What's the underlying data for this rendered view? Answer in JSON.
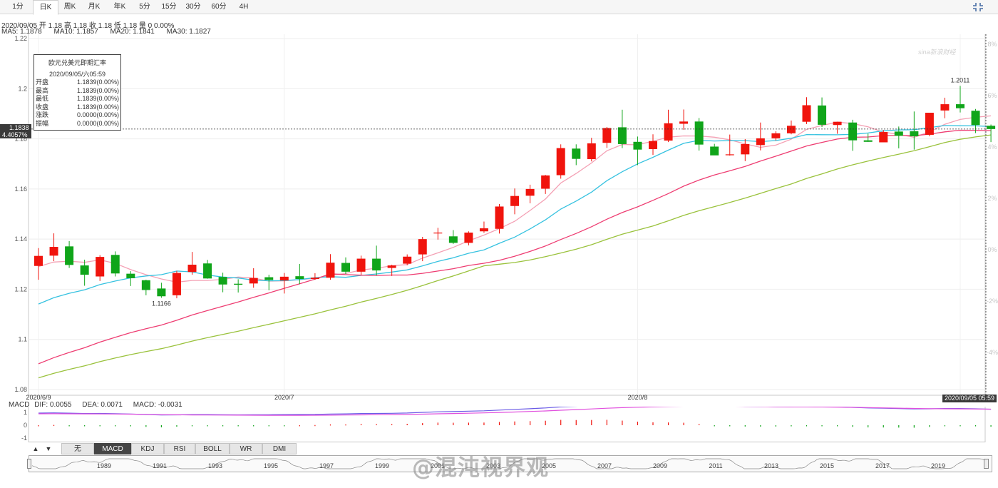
{
  "periods": [
    "1分",
    "日K",
    "周K",
    "月K",
    "年K",
    "5分",
    "15分",
    "30分",
    "60分",
    "4H"
  ],
  "active_period": "日K",
  "info_line": "2020/09/05 开 1.18 高 1.18 收 1.18 低 1.18 量 0 0.00%",
  "ma_labels": {
    "ma5": "MA5: 1.1878",
    "ma10": "MA10: 1.1857",
    "ma20": "MA20: 1.1841",
    "ma30": "MA30: 1.1827"
  },
  "colors": {
    "up": "#f0140d",
    "down": "#10a51a",
    "ma5": "#f4a0b4",
    "ma10": "#36c2e0",
    "ma20": "#ee3d72",
    "ma30": "#9ac23c",
    "dif": "#6a5ae6",
    "dea": "#e150de",
    "macd": "#f0140d"
  },
  "tooltip": {
    "title": "欧元兑美元即期汇率",
    "datetime": "2020/09/05/六05:59",
    "rows": [
      {
        "label": "开盘",
        "value": "1.1839(0.00%)"
      },
      {
        "label": "最高",
        "value": "1.1839(0.00%)"
      },
      {
        "label": "最低",
        "value": "1.1839(0.00%)"
      },
      {
        "label": "收盘",
        "value": "1.1839(0.00%)"
      },
      {
        "label": "涨跌",
        "value": "0.0000(0.00%)"
      },
      {
        "label": "振幅",
        "value": "0.0000(0.00%)"
      }
    ]
  },
  "price_tag": "1.1838",
  "pct_tag": "4.4057%",
  "date_tag": "2020/09/05 05:59",
  "right_axis_ticks": [
    "8%",
    "6%",
    "4%",
    "2%",
    "0%",
    "-2%",
    "-4%",
    "-6%",
    "-8%"
  ],
  "macd_legend": {
    "name": "MACD",
    "dif": "DIF: 0.0055",
    "dea": "DEA: 0.0071",
    "macd": "MACD: -0.0031"
  },
  "macd_ticks": [
    "1",
    "0",
    "-1"
  ],
  "indicator_tabs": [
    "无",
    "MACD",
    "KDJ",
    "RSI",
    "BOLL",
    "WR",
    "DMI"
  ],
  "active_indicator": "MACD",
  "navigator_years": [
    "1989",
    "1991",
    "1993",
    "1995",
    "1997",
    "1999",
    "2001",
    "2003",
    "2005",
    "2007",
    "2009",
    "2011",
    "2013",
    "2015",
    "2017",
    "2019"
  ],
  "watermark": "@混沌视界观",
  "logo_text": "sina新浪财经",
  "chart_data": {
    "type": "candlestick",
    "title": "欧元兑美元即期汇率",
    "ylim": [
      1.08,
      1.22
    ],
    "yticks": [
      1.22,
      1.2,
      1.18,
      1.16,
      1.14,
      1.12,
      1.1,
      1.08
    ],
    "x_labels": [
      {
        "index": 0,
        "label": "2020/6/9"
      },
      {
        "index": 16,
        "label": "2020/7"
      },
      {
        "index": 39,
        "label": "2020/8"
      },
      {
        "index": 60,
        "label": "2020"
      }
    ],
    "annotations": [
      {
        "index": 8,
        "label": "1.1166"
      },
      {
        "index": 60,
        "label": "1.2011"
      }
    ],
    "ohlc": [
      [
        1.1293,
        1.1364,
        1.1238,
        1.1333
      ],
      [
        1.1334,
        1.1423,
        1.1312,
        1.1369
      ],
      [
        1.1371,
        1.1392,
        1.1285,
        1.1297
      ],
      [
        1.1295,
        1.1318,
        1.1214,
        1.1258
      ],
      [
        1.1251,
        1.1336,
        1.1233,
        1.1329
      ],
      [
        1.1337,
        1.1351,
        1.1251,
        1.1263
      ],
      [
        1.1262,
        1.1272,
        1.1213,
        1.1244
      ],
      [
        1.1236,
        1.1238,
        1.1176,
        1.1197
      ],
      [
        1.1203,
        1.1226,
        1.1166,
        1.1172
      ],
      [
        1.1176,
        1.1273,
        1.1164,
        1.1265
      ],
      [
        1.1269,
        1.1349,
        1.1258,
        1.1298
      ],
      [
        1.1303,
        1.1317,
        1.1242,
        1.1243
      ],
      [
        1.1249,
        1.1266,
        1.1188,
        1.1219
      ],
      [
        1.1222,
        1.124,
        1.1187,
        1.1218
      ],
      [
        1.1223,
        1.1284,
        1.1206,
        1.1245
      ],
      [
        1.1248,
        1.1258,
        1.1196,
        1.1237
      ],
      [
        1.1235,
        1.1265,
        1.1183,
        1.125
      ],
      [
        1.1252,
        1.1301,
        1.122,
        1.1241
      ],
      [
        1.1241,
        1.1264,
        1.1238,
        1.1246
      ],
      [
        1.1246,
        1.134,
        1.1238,
        1.1306
      ],
      [
        1.1305,
        1.1327,
        1.1261,
        1.127
      ],
      [
        1.127,
        1.1334,
        1.1258,
        1.1322
      ],
      [
        1.1322,
        1.1374,
        1.1255,
        1.1275
      ],
      [
        1.1285,
        1.1298,
        1.1253,
        1.1295
      ],
      [
        1.1302,
        1.1339,
        1.1296,
        1.133
      ],
      [
        1.1339,
        1.1409,
        1.1312,
        1.14
      ],
      [
        1.1426,
        1.1445,
        1.1398,
        1.1426
      ],
      [
        1.1411,
        1.1436,
        1.1381,
        1.1385
      ],
      [
        1.1385,
        1.1431,
        1.1375,
        1.1426
      ],
      [
        1.1431,
        1.147,
        1.1425,
        1.1443
      ],
      [
        1.1441,
        1.154,
        1.1422,
        1.153
      ],
      [
        1.1532,
        1.1602,
        1.1499,
        1.1572
      ],
      [
        1.1573,
        1.1617,
        1.1543,
        1.16
      ],
      [
        1.1601,
        1.1656,
        1.158,
        1.1654
      ],
      [
        1.1655,
        1.1778,
        1.1641,
        1.1763
      ],
      [
        1.1761,
        1.1778,
        1.1695,
        1.172
      ],
      [
        1.1719,
        1.1804,
        1.171,
        1.1782
      ],
      [
        1.1784,
        1.1847,
        1.1764,
        1.1843
      ],
      [
        1.1846,
        1.1916,
        1.1763,
        1.1779
      ],
      [
        1.1788,
        1.1809,
        1.1695,
        1.1757
      ],
      [
        1.1759,
        1.1818,
        1.1736,
        1.1791
      ],
      [
        1.1793,
        1.1916,
        1.1787,
        1.1862
      ],
      [
        1.186,
        1.1917,
        1.1836,
        1.1869
      ],
      [
        1.1869,
        1.1883,
        1.1753,
        1.1777
      ],
      [
        1.1769,
        1.178,
        1.1735,
        1.1734
      ],
      [
        1.1738,
        1.1817,
        1.1733,
        1.1738
      ],
      [
        1.1738,
        1.1799,
        1.1711,
        1.1779
      ],
      [
        1.1775,
        1.1865,
        1.1754,
        1.1802
      ],
      [
        1.1802,
        1.183,
        1.1793,
        1.1822
      ],
      [
        1.1822,
        1.1873,
        1.1818,
        1.1852
      ],
      [
        1.1868,
        1.1966,
        1.1859,
        1.1934
      ],
      [
        1.1933,
        1.1965,
        1.1847,
        1.1856
      ],
      [
        1.1855,
        1.1868,
        1.182,
        1.1868
      ],
      [
        1.1865,
        1.1876,
        1.1752,
        1.1794
      ],
      [
        1.1794,
        1.1821,
        1.1788,
        1.1788
      ],
      [
        1.1786,
        1.1835,
        1.1786,
        1.1827
      ],
      [
        1.1829,
        1.1849,
        1.1762,
        1.1812
      ],
      [
        1.183,
        1.1909,
        1.1757,
        1.181
      ],
      [
        1.1816,
        1.1901,
        1.181,
        1.1904
      ],
      [
        1.1913,
        1.1964,
        1.1882,
        1.1938
      ],
      [
        1.1938,
        1.2011,
        1.1905,
        1.1922
      ],
      [
        1.1912,
        1.1919,
        1.1823,
        1.1855
      ],
      [
        1.1852,
        1.1857,
        1.1787,
        1.1839
      ]
    ]
  }
}
